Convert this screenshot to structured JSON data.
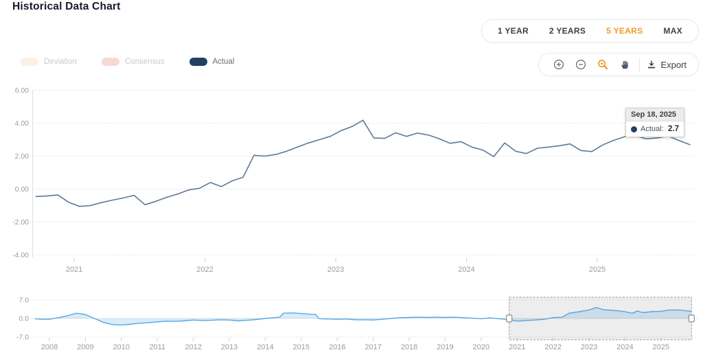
{
  "page": {
    "title": "Historical Data Chart"
  },
  "range_selector": {
    "options": [
      {
        "label": "1 YEAR",
        "active": false
      },
      {
        "label": "2 YEARS",
        "active": false
      },
      {
        "label": "5 YEARS",
        "active": true
      },
      {
        "label": "MAX",
        "active": false
      }
    ],
    "active_color": "#ED9C28"
  },
  "legend": {
    "items": [
      {
        "label": "Deviation",
        "color": "#FAF1E2",
        "enabled": false
      },
      {
        "label": "Consensus",
        "color": "#F7D9D2",
        "enabled": false
      },
      {
        "label": "Actual",
        "color": "#214066",
        "enabled": true
      }
    ]
  },
  "toolbar": {
    "buttons": [
      "zoom-in",
      "zoom-out",
      "zoom-select",
      "pan"
    ],
    "active_button": "zoom-select",
    "export_label": "Export"
  },
  "tooltip": {
    "date": "Sep 18, 2025",
    "series_label": "Actual:",
    "value": "2.7",
    "marker_color": "#214066"
  },
  "chart_data": [
    {
      "type": "line",
      "role": "main-chart",
      "series_name": "Actual",
      "line_color": "#5E7898",
      "ylim": [
        -4,
        6
      ],
      "yticks": [
        "6.00",
        "4.00",
        "2.00",
        "0.00",
        "-2.00",
        "-4.00"
      ],
      "xticks": [
        "2021",
        "2022",
        "2023",
        "2024",
        "2025"
      ],
      "grid": true,
      "months": [
        "2020-09",
        "2020-10",
        "2020-11",
        "2020-12",
        "2021-01",
        "2021-02",
        "2021-03",
        "2021-04",
        "2021-05",
        "2021-06",
        "2021-07",
        "2021-08",
        "2021-09",
        "2021-10",
        "2021-11",
        "2021-12",
        "2022-01",
        "2022-02",
        "2022-03",
        "2022-04",
        "2022-05",
        "2022-06",
        "2022-07",
        "2022-08",
        "2022-09",
        "2022-10",
        "2022-11",
        "2022-12",
        "2023-01",
        "2023-02",
        "2023-03",
        "2023-04",
        "2023-05",
        "2023-06",
        "2023-07",
        "2023-08",
        "2023-09",
        "2023-10",
        "2023-11",
        "2023-12",
        "2024-01",
        "2024-02",
        "2024-03",
        "2024-04",
        "2024-05",
        "2024-06",
        "2024-07",
        "2024-08",
        "2024-09",
        "2024-10",
        "2024-11",
        "2024-12",
        "2025-01",
        "2025-02",
        "2025-03",
        "2025-04",
        "2025-05",
        "2025-06",
        "2025-07",
        "2025-08",
        "2025-09"
      ],
      "values": [
        -0.45,
        -0.42,
        -0.36,
        -0.8,
        -1.05,
        -1.0,
        -0.82,
        -0.67,
        -0.54,
        -0.38,
        -0.95,
        -0.74,
        -0.5,
        -0.3,
        -0.05,
        0.05,
        0.4,
        0.15,
        0.5,
        0.72,
        2.05,
        2.0,
        2.1,
        2.3,
        2.55,
        2.8,
        3.0,
        3.2,
        3.55,
        3.8,
        4.18,
        3.1,
        3.08,
        3.42,
        3.2,
        3.4,
        3.28,
        3.06,
        2.78,
        2.88,
        2.55,
        2.37,
        1.97,
        2.8,
        2.3,
        2.16,
        2.48,
        2.55,
        2.63,
        2.74,
        2.34,
        2.28,
        2.68,
        2.96,
        3.18,
        3.23,
        3.05,
        3.1,
        3.22,
        2.95,
        2.7
      ]
    },
    {
      "type": "area",
      "role": "navigator",
      "line_color": "#54A8E8",
      "fill_color": "rgba(84,168,232,0.22)",
      "ylim": [
        -7,
        7
      ],
      "yticks": [
        "7.0",
        "0.0",
        "-7.0"
      ],
      "xticks": [
        "2008",
        "2009",
        "2010",
        "2011",
        "2012",
        "2013",
        "2014",
        "2015",
        "2016",
        "2017",
        "2018",
        "2019",
        "2020",
        "2021",
        "2022",
        "2023",
        "2024",
        "2025"
      ],
      "selection": {
        "start": 2020.78,
        "end": 2025.85
      },
      "points": [
        [
          2007.6,
          -0.15
        ],
        [
          2007.8,
          -0.3
        ],
        [
          2008.0,
          -0.3
        ],
        [
          2008.25,
          0.3
        ],
        [
          2008.5,
          1.0
        ],
        [
          2008.75,
          2.0
        ],
        [
          2009.0,
          1.5
        ],
        [
          2009.25,
          0.0
        ],
        [
          2009.5,
          -1.5
        ],
        [
          2009.75,
          -2.3
        ],
        [
          2010.0,
          -2.5
        ],
        [
          2010.25,
          -2.2
        ],
        [
          2010.5,
          -1.8
        ],
        [
          2010.75,
          -1.6
        ],
        [
          2011.0,
          -1.3
        ],
        [
          2011.25,
          -1.0
        ],
        [
          2011.5,
          -1.1
        ],
        [
          2011.75,
          -0.9
        ],
        [
          2012.0,
          -0.6
        ],
        [
          2012.25,
          -0.8
        ],
        [
          2012.5,
          -0.7
        ],
        [
          2012.75,
          -0.5
        ],
        [
          2013.0,
          -0.6
        ],
        [
          2013.25,
          -0.9
        ],
        [
          2013.5,
          -0.7
        ],
        [
          2013.75,
          -0.4
        ],
        [
          2014.0,
          0.0
        ],
        [
          2014.25,
          0.3
        ],
        [
          2014.4,
          0.5
        ],
        [
          2014.5,
          2.0
        ],
        [
          2014.75,
          2.1
        ],
        [
          2015.0,
          1.9
        ],
        [
          2015.25,
          1.6
        ],
        [
          2015.4,
          1.5
        ],
        [
          2015.5,
          -0.1
        ],
        [
          2015.75,
          -0.2
        ],
        [
          2016.0,
          -0.3
        ],
        [
          2016.25,
          -0.2
        ],
        [
          2016.5,
          -0.5
        ],
        [
          2016.75,
          -0.5
        ],
        [
          2017.0,
          -0.6
        ],
        [
          2017.25,
          -0.3
        ],
        [
          2017.5,
          0.0
        ],
        [
          2017.75,
          0.3
        ],
        [
          2018.0,
          0.4
        ],
        [
          2018.25,
          0.5
        ],
        [
          2018.5,
          0.4
        ],
        [
          2018.75,
          0.5
        ],
        [
          2019.0,
          0.4
        ],
        [
          2019.25,
          0.5
        ],
        [
          2019.5,
          0.3
        ],
        [
          2019.75,
          0.1
        ],
        [
          2020.0,
          -0.1
        ],
        [
          2020.25,
          0.2
        ],
        [
          2020.5,
          -0.1
        ],
        [
          2020.78,
          -0.45
        ],
        [
          2021.0,
          -1.0
        ],
        [
          2021.25,
          -0.8
        ],
        [
          2021.5,
          -0.6
        ],
        [
          2021.75,
          -0.3
        ],
        [
          2022.0,
          0.3
        ],
        [
          2022.25,
          0.5
        ],
        [
          2022.45,
          2.0
        ],
        [
          2022.75,
          2.6
        ],
        [
          2023.0,
          3.2
        ],
        [
          2023.2,
          4.15
        ],
        [
          2023.4,
          3.3
        ],
        [
          2023.6,
          3.1
        ],
        [
          2023.8,
          2.9
        ],
        [
          2024.0,
          2.55
        ],
        [
          2024.2,
          2.0
        ],
        [
          2024.35,
          2.8
        ],
        [
          2024.5,
          2.2
        ],
        [
          2024.75,
          2.6
        ],
        [
          2025.0,
          2.7
        ],
        [
          2025.25,
          3.2
        ],
        [
          2025.5,
          3.2
        ],
        [
          2025.85,
          2.7
        ]
      ]
    }
  ]
}
